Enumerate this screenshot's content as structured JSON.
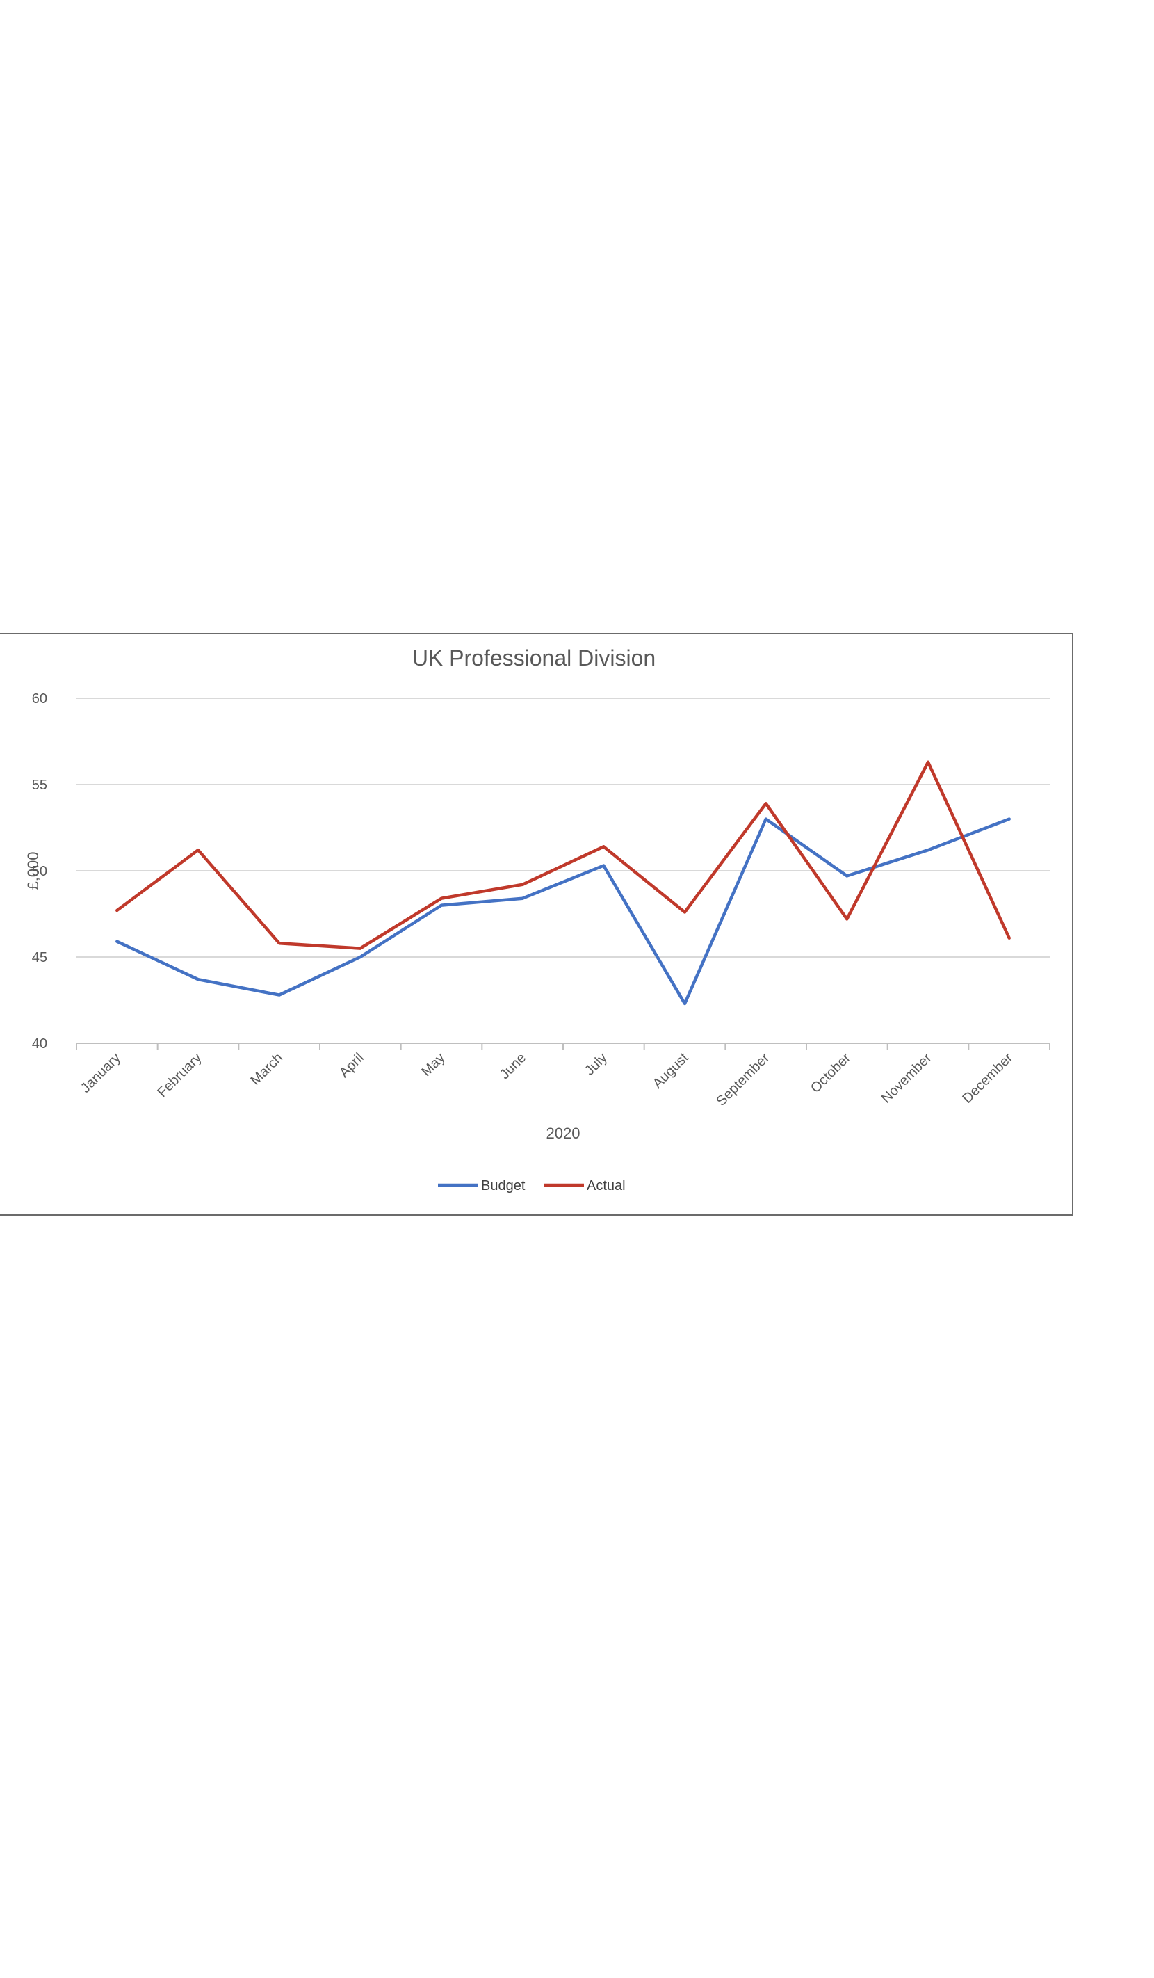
{
  "chart_data": {
    "type": "line",
    "title": "UK Professional Division",
    "xlabel": "2020",
    "ylabel": "£,000",
    "ylim": [
      40,
      60
    ],
    "yticks": [
      40,
      45,
      50,
      55,
      60
    ],
    "grid": true,
    "legend": "bottom",
    "categories": [
      "January",
      "February",
      "March",
      "April",
      "May",
      "June",
      "July",
      "August",
      "September",
      "October",
      "November",
      "December"
    ],
    "series": [
      {
        "name": "Budget",
        "color": "#4472C4",
        "values": [
          45.9,
          43.7,
          42.8,
          45.0,
          48.0,
          48.4,
          50.3,
          42.3,
          53.0,
          49.7,
          51.2,
          53.0
        ]
      },
      {
        "name": "Actual",
        "color": "#C0392B",
        "values": [
          47.7,
          51.2,
          45.8,
          45.5,
          48.4,
          49.2,
          51.4,
          47.6,
          53.9,
          47.2,
          56.3,
          46.1
        ]
      }
    ]
  }
}
